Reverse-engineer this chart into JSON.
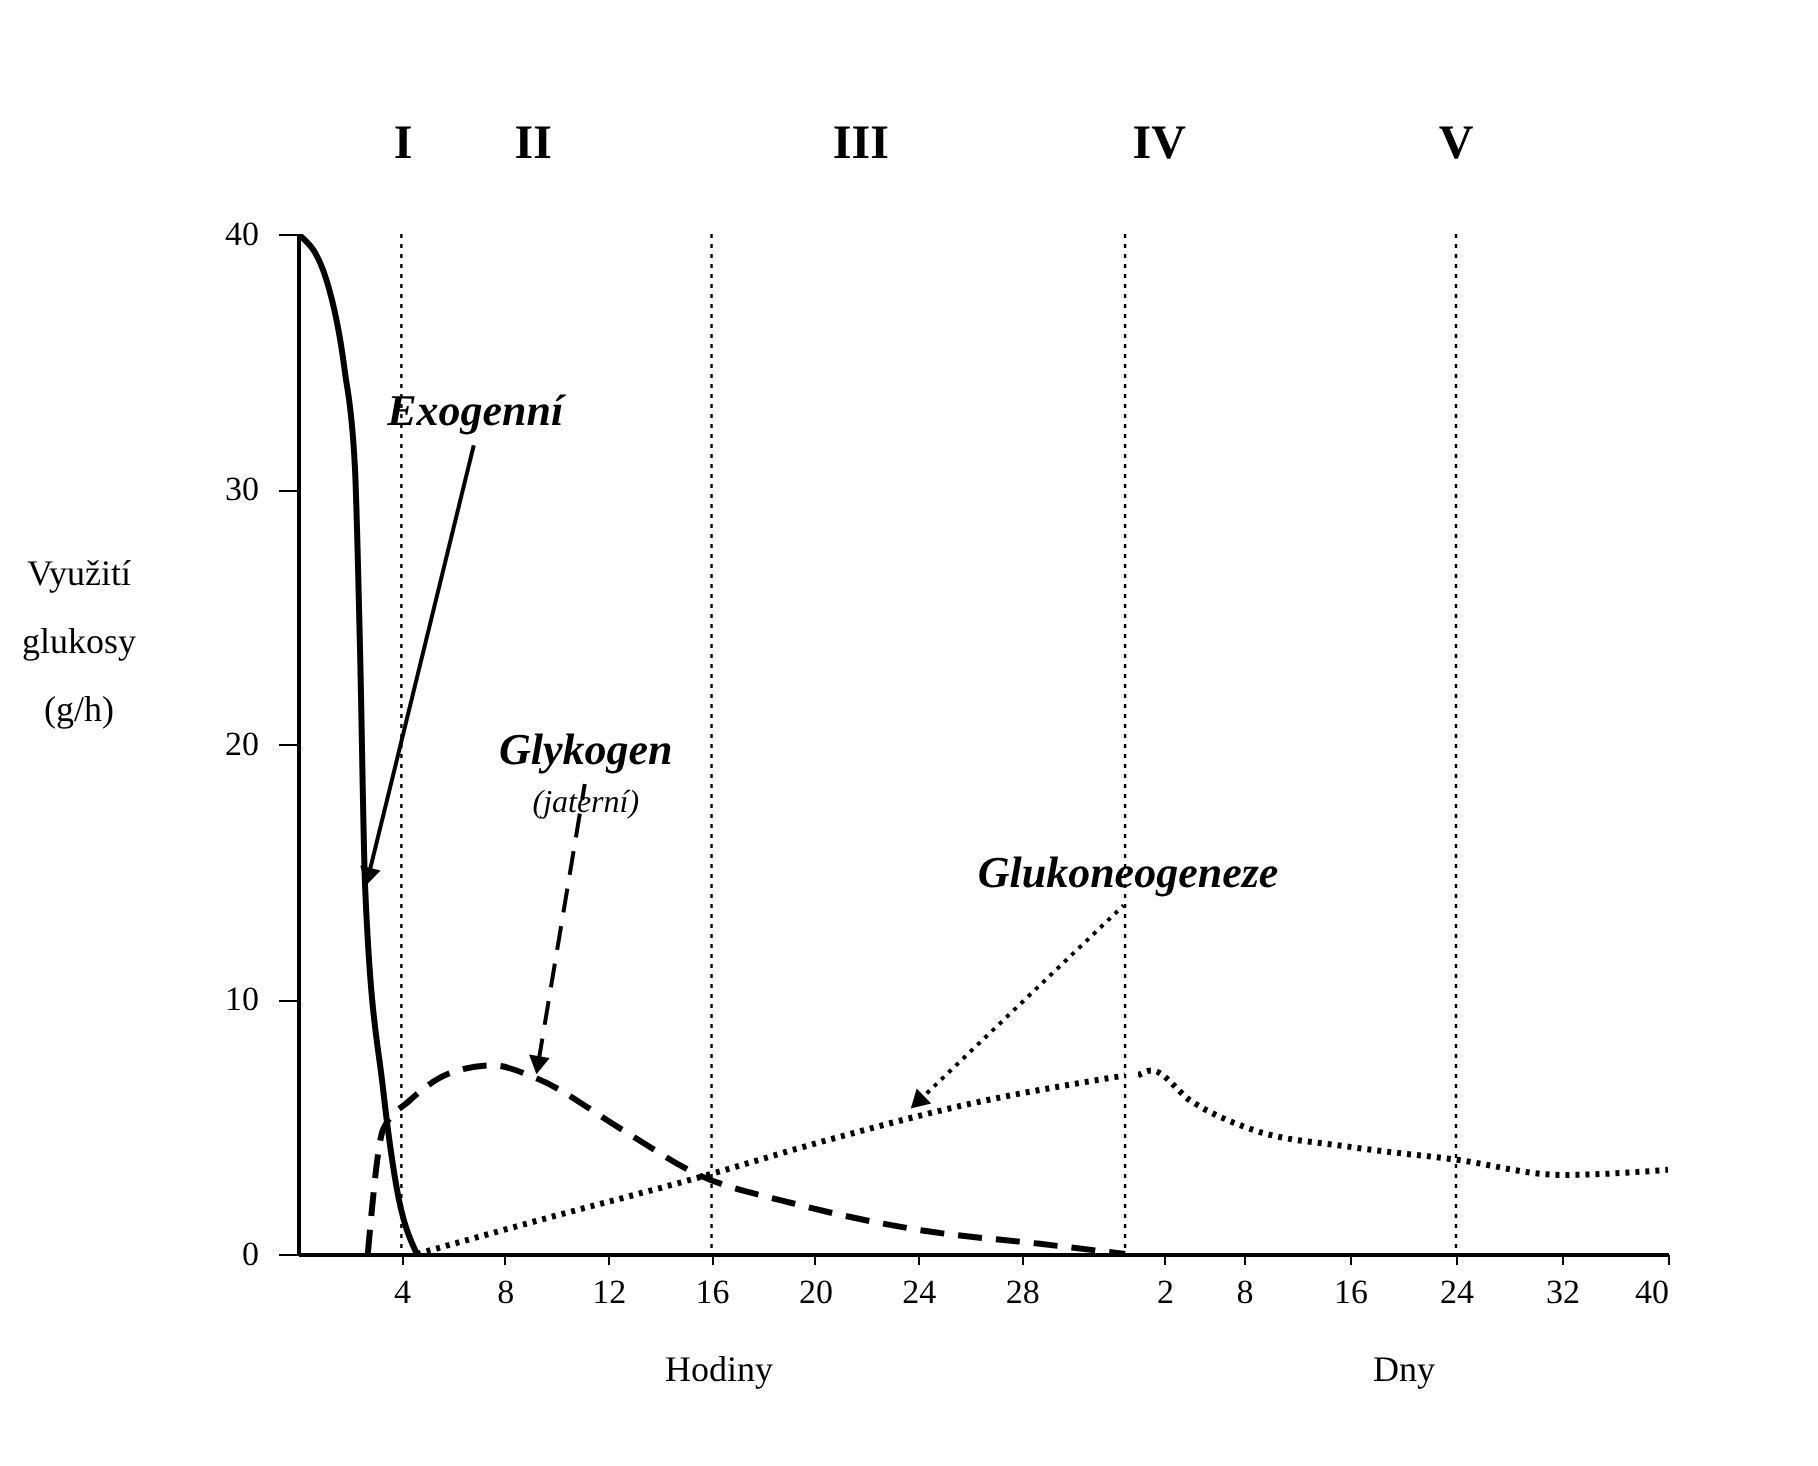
{
  "chart_data": [
    {
      "type": "line",
      "ylabel": "Využití glukosy (g/h)",
      "xlabel": "Hodiny",
      "xlim": [
        0,
        32.5
      ],
      "xticks": [
        4,
        8,
        12,
        16,
        20,
        24,
        28
      ],
      "ylim": [
        0,
        40
      ],
      "yticks": [
        0,
        10,
        20,
        30,
        40
      ],
      "grid": false,
      "marker": "none",
      "series": [
        {
          "color": "#000000",
          "line_style": "solid",
          "x": [
            0,
            1.1,
            1.8,
            2.2,
            2.4,
            2.6,
            3.3,
            3.8,
            4.6
          ],
          "values": [
            40,
            38.2,
            34.7,
            30.9,
            23.7,
            14.3,
            6.4,
            2.7,
            0
          ]
        },
        {
          "color": "#000000",
          "line_style": "dashed",
          "x": [
            2.7,
            3.3,
            4.3,
            5.9,
            7.5,
            9.2,
            12.5,
            15.5,
            19.1,
            24.3,
            28.7,
            32
          ],
          "values": [
            0,
            4.9,
            6.0,
            7.1,
            7.4,
            6.9,
            4.9,
            3.1,
            2.0,
            0.9,
            0.4,
            0
          ]
        },
        {
          "color": "#000000",
          "line_style": "dotted",
          "x": [
            4.6,
            9.6,
            15.5,
            20.6,
            26.5,
            30.2,
            32
          ],
          "values": [
            0,
            1.4,
            3.0,
            4.5,
            6.0,
            6.7,
            7.0
          ]
        }
      ],
      "ref_lines": [
        {
          "axis": "x",
          "value": 4
        },
        {
          "axis": "x",
          "value": 16
        },
        {
          "axis": "x",
          "value": 32
        }
      ],
      "annotations": [
        "I",
        "II",
        "III",
        {
          "text": "Exogenní",
          "x": 2.6,
          "y": 14.3
        },
        {
          "text": "Glykogen\n(jaterní)",
          "x": 9.2,
          "y": 6.9
        },
        {
          "text": "Glukoneogeneze",
          "x": 23.6,
          "y": 5.6
        }
      ]
    },
    {
      "type": "line",
      "xlabel": "Dny",
      "xlim": [
        0,
        40
      ],
      "xticks": [
        2,
        8,
        16,
        24,
        32,
        40
      ],
      "ylim": [
        0,
        40
      ],
      "tick_labels": "x",
      "grid": false,
      "marker": "none",
      "series": [
        {
          "color": "#000000",
          "line_style": "dotted",
          "x": [
            0,
            1,
            4,
            8.5,
            16,
            24,
            32,
            40
          ],
          "values": [
            7.0,
            7.2,
            6.0,
            4.9,
            4.2,
            3.7,
            3.1,
            3.3
          ]
        }
      ],
      "ref_lines": [
        {
          "axis": "x",
          "value": 24
        }
      ],
      "annotations": [
        "IV",
        "V"
      ]
    }
  ]
}
